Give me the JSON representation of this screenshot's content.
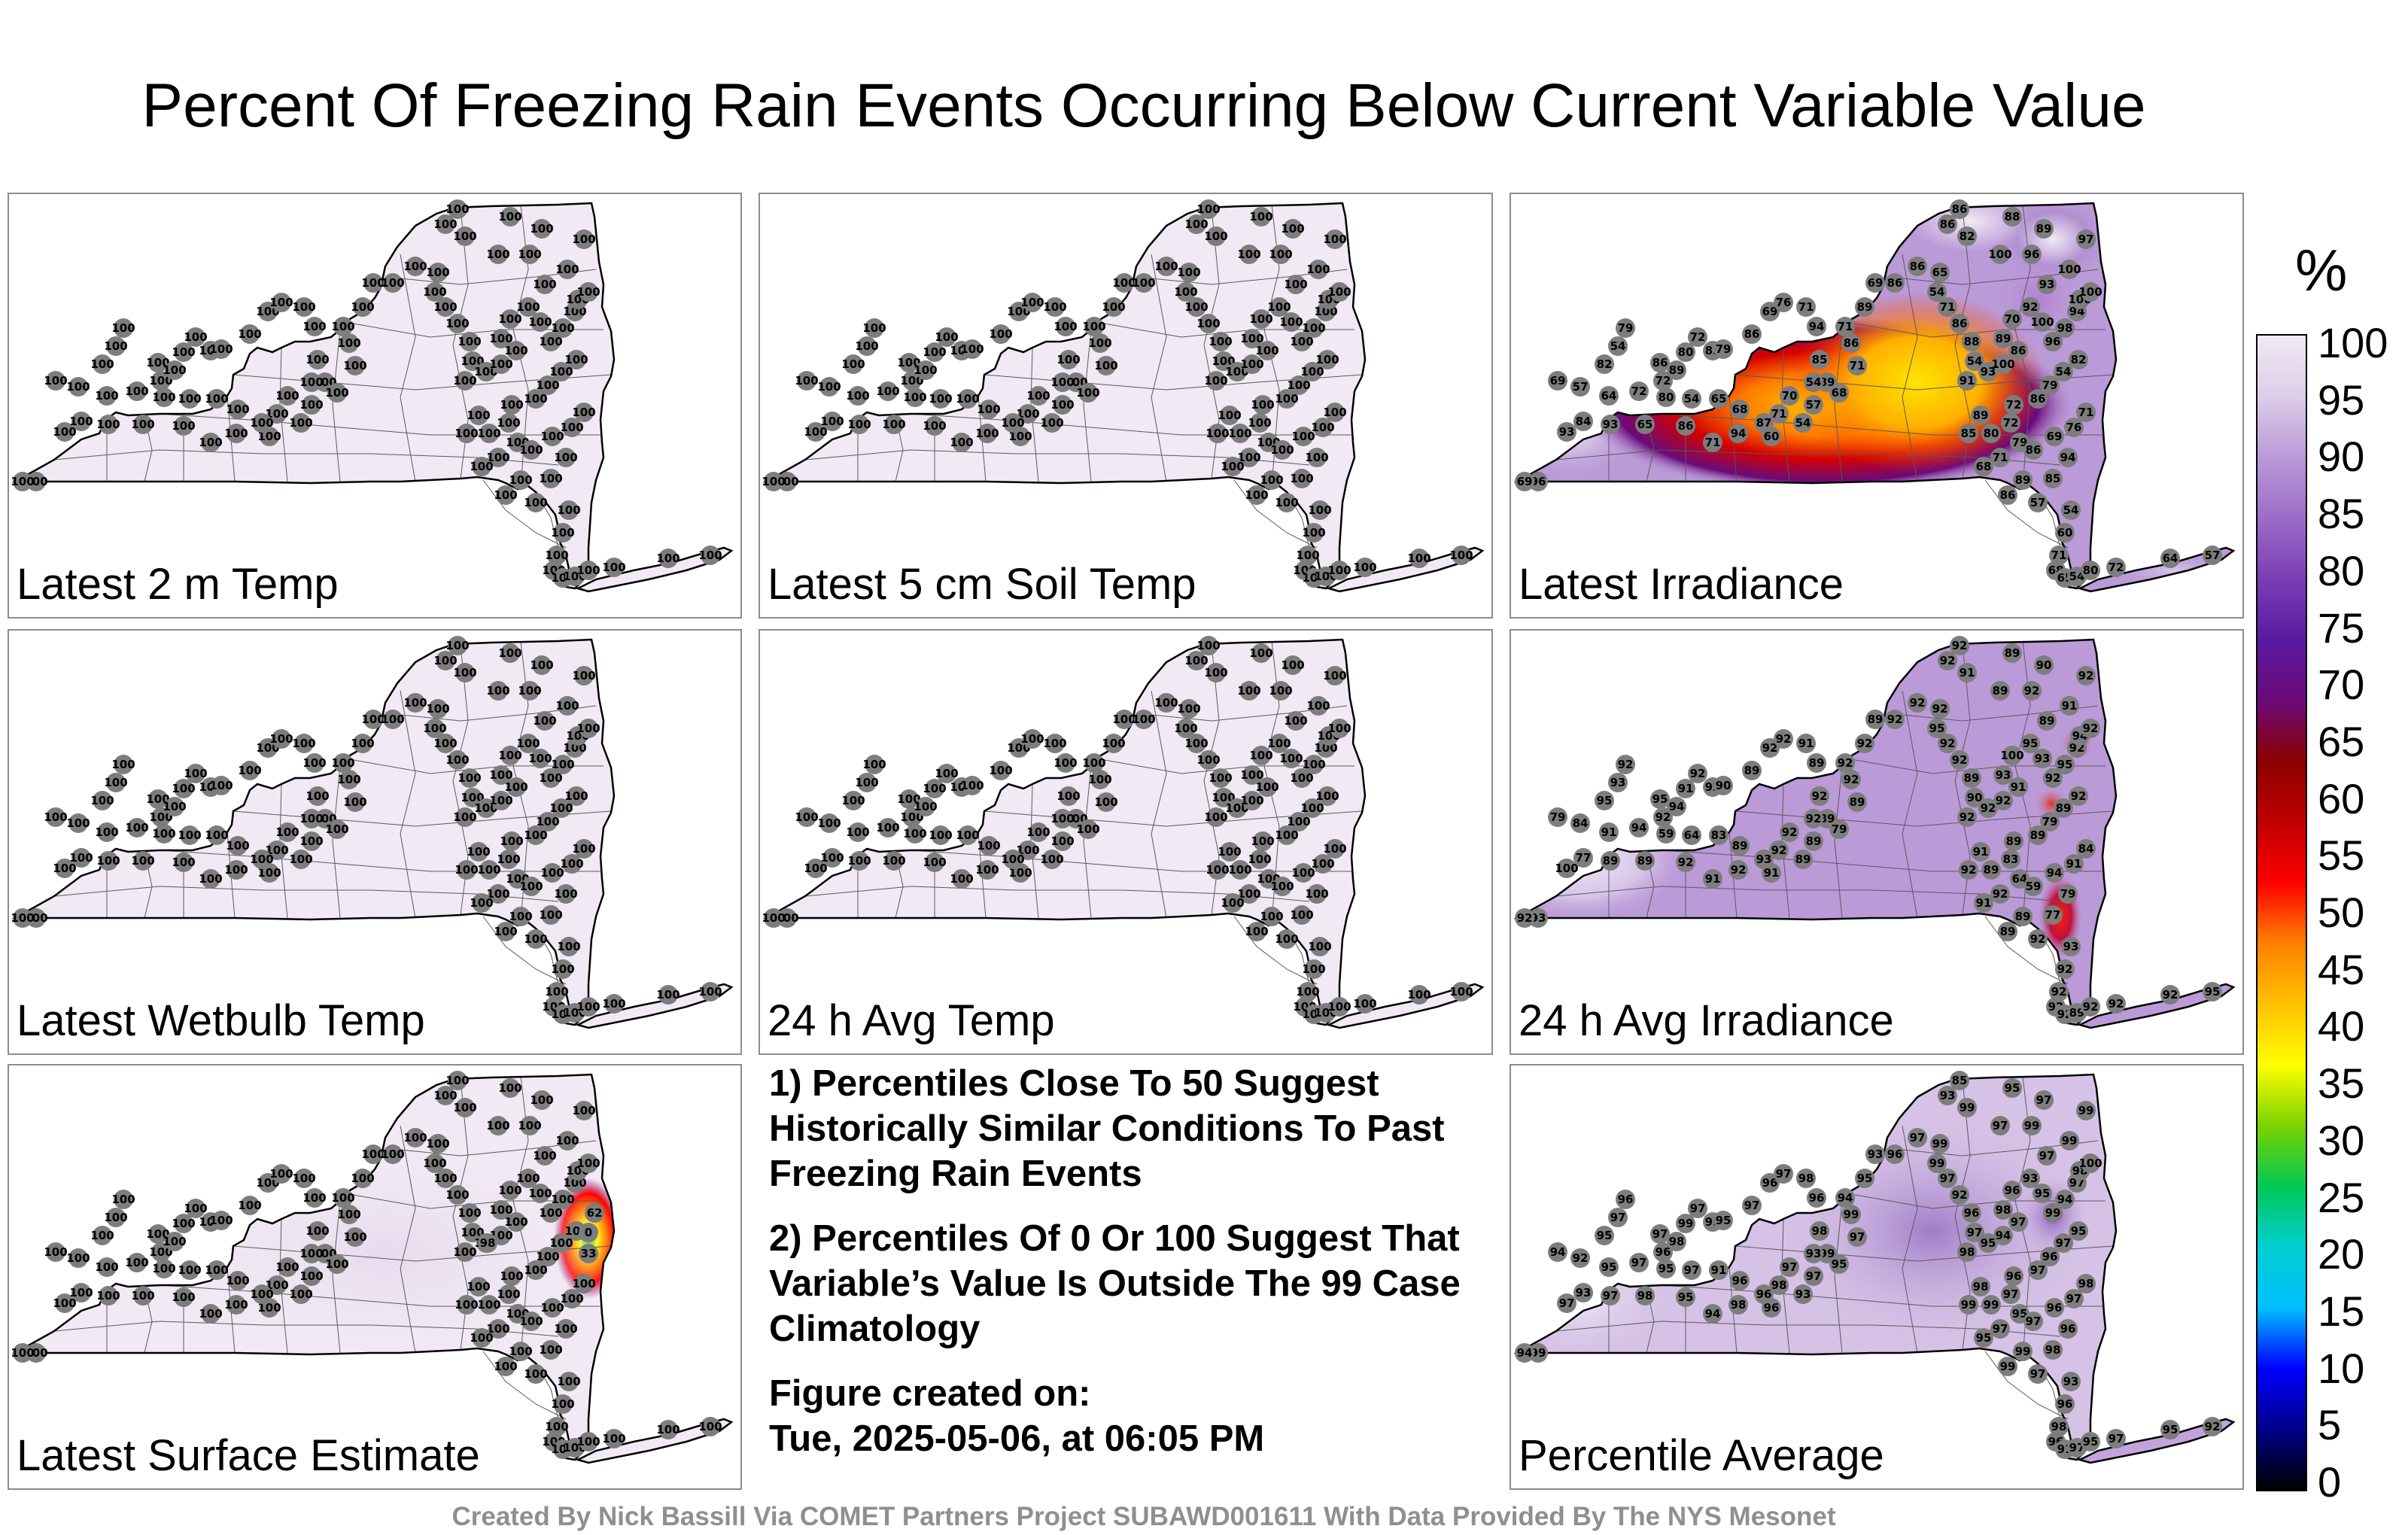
{
  "title": "Percent Of Freezing Rain Events Occurring Below Current Variable Value",
  "panels": [
    {
      "label": "Latest 2 m Temp",
      "mode": "uniform",
      "value": 100
    },
    {
      "label": "Latest 5 cm Soil Temp",
      "mode": "uniform",
      "value": 100
    },
    {
      "label": "Latest Irradiance",
      "mode": "irradiance",
      "station_values": [
        96,
        93,
        82,
        54,
        79,
        86,
        72,
        89,
        85,
        80,
        72,
        79,
        86,
        69,
        76,
        71,
        94,
        85,
        89,
        86,
        71,
        68,
        57,
        54,
        60,
        71,
        68,
        65,
        54,
        80,
        72,
        64,
        57,
        69,
        84,
        93,
        65,
        86,
        71,
        94,
        87,
        70,
        54,
        71,
        89,
        69,
        86,
        86,
        65,
        54,
        71,
        86,
        88,
        54,
        91,
        93,
        100,
        86,
        89,
        70,
        92,
        100,
        96,
        98,
        94,
        100,
        100,
        100,
        97,
        89,
        88,
        86,
        86,
        82,
        100
      ],
      "minimum_shown": 54
    },
    {
      "label": "Latest Wetbulb Temp",
      "mode": "uniform",
      "value": 100
    },
    {
      "label": "24 h Avg Temp",
      "mode": "uniform",
      "value": 100
    },
    {
      "label": "24 h Avg Irradiance",
      "mode": "avg_irradiance",
      "station_values": [
        93,
        100,
        95,
        93,
        92,
        95,
        92,
        94,
        92,
        91,
        92,
        90,
        89,
        92,
        92,
        91,
        89,
        92,
        89,
        92,
        89,
        79,
        89,
        89,
        91,
        92,
        89,
        83,
        64,
        59,
        94,
        91,
        84,
        79,
        77,
        89,
        89,
        92,
        91,
        92,
        93,
        92,
        92,
        92,
        92,
        89,
        92,
        92,
        92,
        95,
        92,
        92,
        89,
        90,
        92,
        92,
        92,
        91
      ],
      "minimum_shown": 59
    },
    {
      "label": "Latest Surface Estimate",
      "mode": "surface",
      "value": 100,
      "hotspot_values": [
        62,
        0,
        33,
        98
      ]
    },
    {
      "label": "Percentile Average",
      "mode": "average",
      "station_values": [
        99,
        97,
        95,
        97,
        96,
        97,
        96,
        98,
        99,
        99,
        97,
        95,
        97,
        96,
        97,
        98,
        96,
        98,
        99,
        99,
        97,
        95,
        97,
        93,
        96,
        98,
        96,
        91,
        97,
        95,
        97,
        95,
        92,
        94,
        93,
        97,
        98,
        95,
        94,
        98,
        96,
        97,
        93,
        94,
        95,
        93,
        96,
        97,
        99,
        99,
        97,
        92,
        96,
        97,
        98,
        95,
        94,
        97,
        98,
        96,
        93,
        95,
        99,
        94,
        97,
        98,
        100,
        99,
        99,
        97,
        95,
        85,
        93,
        99,
        97
      ]
    }
  ],
  "notes": {
    "note1": "1) Percentiles Close To 50 Suggest Historically Similar Conditions To Past Freezing Rain Events",
    "note2": "2) Percentiles Of 0 Or 100 Suggest That Variable’s Value Is Outside The 99 Case Climatology",
    "created_label": "Figure created on:",
    "created_value": "Tue, 2025-05-06, at 06:05 PM"
  },
  "colorbar": {
    "unit": "%",
    "ticks": [
      "100",
      "95",
      "90",
      "85",
      "80",
      "75",
      "70",
      "65",
      "60",
      "55",
      "50",
      "45",
      "40",
      "35",
      "30",
      "25",
      "20",
      "15",
      "10",
      "5",
      "0"
    ],
    "range": [
      0,
      100
    ],
    "colors": [
      "#000000",
      "#00008b",
      "#0000ff",
      "#00bfff",
      "#00ced1",
      "#00c853",
      "#7cd300",
      "#ffff00",
      "#ffc000",
      "#ff8000",
      "#ff0000",
      "#c00000",
      "#8b0000",
      "#6b0a7a",
      "#5a1aa0",
      "#7b3db5",
      "#9c6cc8",
      "#bb9ad8",
      "#dccde8",
      "#f1e9f4"
    ]
  },
  "footer": "Created By Nick Bassill Via COMET Partners Project SUBAWD001611 With Data Provided By The NYS Mesonet"
}
